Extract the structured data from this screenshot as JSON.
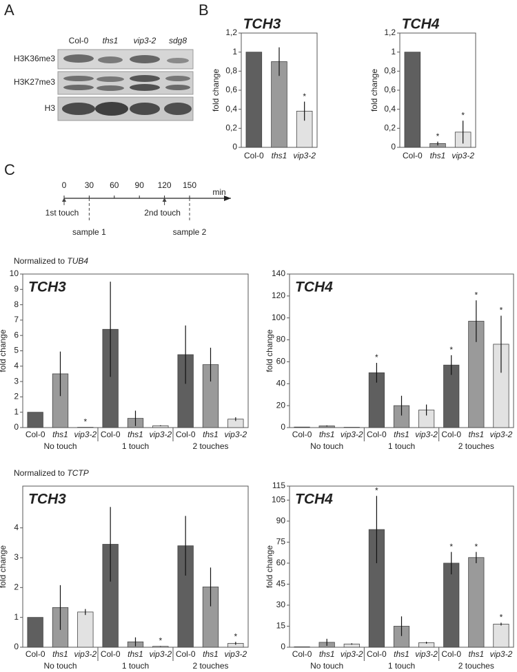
{
  "panel_labels": [
    "A",
    "B",
    "C"
  ],
  "blot": {
    "columns": [
      "Col-0",
      "ths1",
      "vip3-2",
      "sdg8"
    ],
    "rows": [
      "H3K36me3",
      "H3K27me3",
      "H3"
    ]
  },
  "timeline": {
    "ticks": [
      0,
      30,
      60,
      90,
      120,
      150
    ],
    "unit": "min",
    "events": [
      {
        "label": "1st touch",
        "time": 0,
        "kind": "touch"
      },
      {
        "label": "sample 1",
        "time": 30,
        "kind": "sample"
      },
      {
        "label": "2nd touch",
        "time": 120,
        "kind": "touch"
      },
      {
        "label": "sample 2",
        "time": 150,
        "kind": "sample"
      }
    ]
  },
  "sections": [
    {
      "text": "Normalized to",
      "gene": "TUB4"
    },
    {
      "text": "Normalized to",
      "gene": "TCTP"
    }
  ],
  "chart_data": [
    {
      "type": "bar",
      "title": "TCH3",
      "y_label": "fold change",
      "categories": [
        "Col-0",
        "ths1",
        "vip3-2"
      ],
      "values": [
        1,
        0.9,
        0.38
      ],
      "errors": [
        0,
        0.15,
        0.1
      ],
      "markers": [
        null,
        null,
        "*"
      ],
      "colors": [
        "#5f5f5f",
        "#9a9a9a",
        "#e2e2e2"
      ],
      "ylim": [
        0,
        1.2
      ],
      "yticks": [
        0,
        {
          "value": 0.2,
          "label": "0,2"
        },
        {
          "value": 0.4,
          "label": "0,4"
        },
        {
          "value": 0.6,
          "label": "0,6"
        },
        {
          "value": 0.8,
          "label": "0,8"
        },
        1,
        {
          "value": 1.2,
          "label": "1,2"
        }
      ]
    },
    {
      "type": "bar",
      "title": "TCH4",
      "y_label": "fold change",
      "categories": [
        "Col-0",
        "ths1",
        "vip3-2"
      ],
      "values": [
        1,
        0.04,
        0.16
      ],
      "errors": [
        0,
        0.02,
        0.12
      ],
      "markers": [
        null,
        "*",
        "*"
      ],
      "colors": [
        "#5f5f5f",
        "#9a9a9a",
        "#e2e2e2"
      ],
      "ylim": [
        0,
        1.2
      ],
      "yticks": [
        0,
        {
          "value": 0.2,
          "label": "0,2"
        },
        {
          "value": 0.4,
          "label": "0,4"
        },
        {
          "value": 0.6,
          "label": "0,6"
        },
        {
          "value": 0.8,
          "label": "0,8"
        },
        1,
        {
          "value": 1.2,
          "label": "1,2"
        }
      ]
    },
    {
      "type": "grouped_bar",
      "title": "TCH3",
      "y_label": "fold change",
      "categories": [
        "No touch",
        "1 touch",
        "2 touches"
      ],
      "series": [
        {
          "name": "Col-0",
          "color": "#5f5f5f",
          "values": [
            1,
            6.4,
            4.75
          ],
          "errors": [
            0,
            3.1,
            1.9
          ],
          "markers": [
            null,
            null,
            null
          ]
        },
        {
          "name": "ths1",
          "color": "#9a9a9a",
          "values": [
            3.5,
            0.6,
            4.1
          ],
          "errors": [
            1.45,
            0.5,
            1.1
          ],
          "markers": [
            null,
            null,
            null
          ]
        },
        {
          "name": "vip3-2",
          "color": "#e2e2e2",
          "values": [
            0.02,
            0.12,
            0.55
          ],
          "errors": [
            0,
            0.03,
            0.12
          ],
          "markers": [
            "*",
            null,
            null
          ]
        }
      ],
      "ylim": [
        0,
        10
      ],
      "yticks": [
        0,
        1,
        2,
        3,
        4,
        5,
        6,
        7,
        8,
        9,
        10
      ]
    },
    {
      "type": "grouped_bar",
      "title": "TCH4",
      "y_label": "fold change",
      "categories": [
        "No touch",
        "1 touch",
        "2 touches"
      ],
      "series": [
        {
          "name": "Col-0",
          "color": "#5f5f5f",
          "values": [
            0.5,
            50,
            57
          ],
          "errors": [
            0,
            9,
            9
          ],
          "markers": [
            null,
            "*",
            "*"
          ]
        },
        {
          "name": "ths1",
          "color": "#9a9a9a",
          "values": [
            1.5,
            20,
            97
          ],
          "errors": [
            0.5,
            9,
            19
          ],
          "markers": [
            null,
            null,
            "*"
          ]
        },
        {
          "name": "vip3-2",
          "color": "#e2e2e2",
          "values": [
            0.3,
            16,
            76
          ],
          "errors": [
            0,
            5,
            26
          ],
          "markers": [
            null,
            null,
            "*"
          ]
        }
      ],
      "ylim": [
        0,
        140
      ],
      "yticks": [
        0,
        20,
        40,
        60,
        80,
        100,
        120,
        140
      ]
    },
    {
      "type": "grouped_bar",
      "title": "TCH3",
      "y_label": "fold change",
      "categories": [
        "No touch",
        "1 touch",
        "2 touches"
      ],
      "series": [
        {
          "name": "Col-0",
          "color": "#5f5f5f",
          "values": [
            1,
            3.45,
            3.4
          ],
          "errors": [
            0,
            1.25,
            1.0
          ],
          "markers": [
            null,
            null,
            null
          ]
        },
        {
          "name": "ths1",
          "color": "#9a9a9a",
          "values": [
            1.33,
            0.18,
            2.02
          ],
          "errors": [
            0.75,
            0.15,
            0.65
          ],
          "markers": [
            null,
            null,
            null
          ]
        },
        {
          "name": "vip3-2",
          "color": "#e2e2e2",
          "values": [
            1.18,
            0.03,
            0.13
          ],
          "errors": [
            0.1,
            0.01,
            0.05
          ],
          "markers": [
            null,
            "*",
            "*"
          ]
        }
      ],
      "ylim": [
        0,
        5.4
      ],
      "yticks": [
        0,
        1,
        2,
        3,
        4
      ]
    },
    {
      "type": "grouped_bar",
      "title": "TCH4",
      "y_label": "fold change",
      "categories": [
        "No touch",
        "1 touch",
        "2 touches"
      ],
      "series": [
        {
          "name": "Col-0",
          "color": "#5f5f5f",
          "values": [
            0.3,
            84,
            60
          ],
          "errors": [
            0,
            24,
            8
          ],
          "markers": [
            null,
            "*",
            "*"
          ]
        },
        {
          "name": "ths1",
          "color": "#9a9a9a",
          "values": [
            3.5,
            15,
            64
          ],
          "errors": [
            2.5,
            7,
            4
          ],
          "markers": [
            null,
            null,
            "*"
          ]
        },
        {
          "name": "vip3-2",
          "color": "#e2e2e2",
          "values": [
            2.3,
            3.2,
            16.5
          ],
          "errors": [
            0.5,
            0.7,
            1
          ],
          "markers": [
            null,
            null,
            "*"
          ]
        }
      ],
      "ylim": [
        0,
        115
      ],
      "yticks": [
        0,
        15,
        30,
        45,
        60,
        75,
        90,
        105,
        115
      ]
    }
  ]
}
